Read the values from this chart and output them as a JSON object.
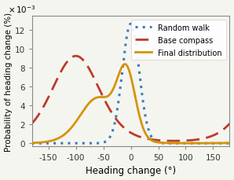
{
  "title": "",
  "xlabel": "Heading change (°)",
  "ylabel": "Probability of heading change (%)",
  "xlim": [
    -180,
    180
  ],
  "ylim": [
    -0.0003,
    0.0135
  ],
  "yticks": [
    0,
    0.002,
    0.004,
    0.006,
    0.008,
    0.01,
    0.012
  ],
  "ytick_labels": [
    "0",
    "2",
    "4",
    "6",
    "8",
    "10",
    "12"
  ],
  "xticks": [
    -150,
    -100,
    -50,
    0,
    50,
    100,
    150
  ],
  "random_walk_color": "#3a7bbf",
  "base_compass_color": "#c0392b",
  "final_dist_color": "#d4940a",
  "rw_kappa": 14.0,
  "rw_peak": 0.01265,
  "bc_kappa": 1.8,
  "bc_mu_deg": -100,
  "bc_peak": 0.00925,
  "final_kappa1": 3.2,
  "final_mu1_deg": -60,
  "final_scale1": 0.0048,
  "final_kappa2": 12.0,
  "final_mu2_deg": -8,
  "final_scale2": 0.0069,
  "legend_labels": [
    "Random walk",
    "Base compass",
    "Final distribution"
  ],
  "background_color": "#f5f5f0"
}
